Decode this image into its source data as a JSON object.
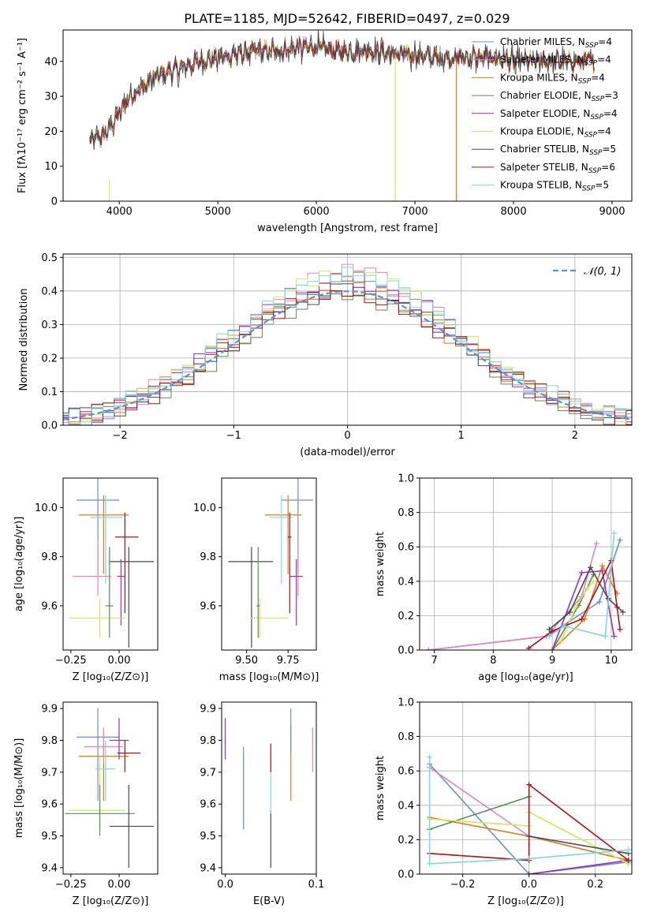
{
  "figure": {
    "title": "PLATE=1185, MJD=52642, FIBERID=0497, z=0.029"
  },
  "colors": {
    "Chabrier MILES": "#6a8fd8",
    "Salpeter MILES": "#e283c8",
    "Kroupa MILES": "#e07b1c",
    "Chabrier ELODIE": "#5a8a5a",
    "Salpeter ELODIE": "#9a2fb0",
    "Kroupa ELODIE": "#cfe85a",
    "Chabrier STELIB": "#4a4a4a",
    "Salpeter STELIB": "#b0101a",
    "Kroupa STELIB": "#7fd8e0",
    "normal": "#5b8fd8"
  },
  "chart_data": [
    {
      "id": "spectrum",
      "type": "line",
      "xlabel": "wavelength [Angstrom, rest frame]",
      "ylabel": "Flux [fλ10⁻¹⁷ erg cm⁻² s⁻¹ A⁻¹]",
      "xlim": [
        3430,
        9200
      ],
      "ylim": [
        0,
        49
      ],
      "xticks": [
        4000,
        5000,
        6000,
        7000,
        8000,
        9000
      ],
      "yticks": [
        0,
        10,
        20,
        30,
        40
      ],
      "grid": false,
      "legend_position": "upper right",
      "legend": [
        {
          "label": "Chabrier MILES, N",
          "sub": "SSP",
          "tail": "=4"
        },
        {
          "label": "Salpeter MILES, N",
          "sub": "SSP",
          "tail": "=4"
        },
        {
          "label": "Kroupa MILES, N",
          "sub": "SSP",
          "tail": "=4"
        },
        {
          "label": "Chabrier ELODIE, N",
          "sub": "SSP",
          "tail": "=3"
        },
        {
          "label": "Salpeter ELODIE, N",
          "sub": "SSP",
          "tail": "=4"
        },
        {
          "label": "Kroupa ELODIE, N",
          "sub": "SSP",
          "tail": "=4"
        },
        {
          "label": "Chabrier STELIB, N",
          "sub": "SSP",
          "tail": "=5"
        },
        {
          "label": "Salpeter STELIB, N",
          "sub": "SSP",
          "tail": "=6"
        },
        {
          "label": "Kroupa STELIB, N",
          "sub": "SSP",
          "tail": "=5"
        }
      ],
      "continuum": {
        "x": [
          3700,
          3850,
          4000,
          4100,
          4200,
          4400,
          4600,
          4800,
          5000,
          5200,
          5400,
          5600,
          5800,
          6000,
          6200,
          6400,
          6600,
          6800,
          7000,
          7200,
          7400,
          7600,
          7800,
          8000,
          8200,
          8400,
          8600,
          8800
        ],
        "y": [
          17,
          19,
          25,
          30,
          32,
          36,
          38,
          40,
          41,
          42,
          43,
          43,
          44,
          44,
          43,
          43,
          43,
          42,
          42,
          41,
          41,
          41,
          41,
          40,
          40,
          40,
          40,
          40
        ]
      },
      "end_x": 8820
    },
    {
      "id": "residuals",
      "type": "step-histogram",
      "xlabel": "(data-model)/error",
      "ylabel": "Normed distribution",
      "xlim": [
        -2.5,
        2.5
      ],
      "ylim": [
        0,
        0.51
      ],
      "xticks": [
        -2,
        -1,
        0,
        1,
        2
      ],
      "yticks": [
        0.0,
        0.1,
        0.2,
        0.3,
        0.4,
        0.5
      ],
      "grid": true,
      "legend_position": "upper right",
      "reference_label": "𝒩(0, 1)",
      "bin_width": 0.1
    },
    {
      "id": "age-vs-Z",
      "type": "errorbar",
      "xlabel": "Z [log₁₀(Z/Z⊙)]",
      "ylabel": "age  [log₁₀(age/yr)]",
      "xlim": [
        -0.29,
        0.2
      ],
      "ylim": [
        9.42,
        10.12
      ],
      "xticks": [
        -0.25,
        0.0
      ],
      "xtick_labels": [
        "−0.25",
        "0.00"
      ],
      "yticks": [
        9.6,
        9.8,
        10.0
      ],
      "points": [
        {
          "series": "Chabrier MILES",
          "x": -0.11,
          "y": 10.03,
          "xerr": [
            0.11,
            0.11
          ],
          "yerr": [
            0.3,
            0.3
          ]
        },
        {
          "series": "Kroupa MILES",
          "x": -0.08,
          "y": 9.97,
          "xerr": [
            0.13,
            0.13
          ],
          "yerr": [
            0.24,
            0.08
          ]
        },
        {
          "series": "Kroupa STELIB",
          "x": -0.07,
          "y": 9.96,
          "xerr": [
            0.08,
            0.09
          ],
          "yerr": [
            0.27,
            0.09
          ]
        },
        {
          "series": "Salpeter MILES",
          "x": -0.11,
          "y": 9.72,
          "xerr": [
            0.13,
            0.07
          ],
          "yerr": [
            0.08,
            0.15
          ]
        },
        {
          "series": "Chabrier STELIB",
          "x": 0.05,
          "y": 9.78,
          "xerr": [
            0.1,
            0.13
          ],
          "yerr": [
            0.35,
            0.06
          ]
        },
        {
          "series": "Salpeter STELIB",
          "x": 0.03,
          "y": 9.88,
          "xerr": [
            0.05,
            0.07
          ],
          "yerr": [
            0.31,
            0.1
          ]
        },
        {
          "series": "Salpeter ELODIE",
          "x": 0.01,
          "y": 9.72,
          "xerr": [
            0.02,
            0.02
          ],
          "yerr": [
            0.2,
            0.07
          ]
        },
        {
          "series": "Kroupa ELODIE",
          "x": -0.1,
          "y": 9.55,
          "xerr": [
            0.16,
            0.13
          ],
          "yerr": [
            0.08,
            0.08
          ]
        },
        {
          "series": "Chabrier ELODIE",
          "x": -0.05,
          "y": 9.6,
          "xerr": [
            0.02,
            0.02
          ],
          "yerr": [
            0.13,
            0.24
          ]
        }
      ]
    },
    {
      "id": "age-vs-mass",
      "type": "errorbar",
      "xlabel": "mass [log₁₀(M/M⊙)]",
      "ylabel": "",
      "xlim": [
        9.35,
        9.92
      ],
      "ylim": [
        9.42,
        10.12
      ],
      "xticks": [
        9.5,
        9.75
      ],
      "xtick_labels": [
        "9.50",
        "9.75"
      ],
      "yticks": [
        9.6,
        9.8,
        10.0
      ],
      "points": [
        {
          "series": "Chabrier MILES",
          "x": 9.81,
          "y": 10.03,
          "xerr": [
            0.1,
            0.09
          ],
          "yerr": [
            0.3,
            0.3
          ]
        },
        {
          "series": "Kroupa MILES",
          "x": 9.75,
          "y": 9.97,
          "xerr": [
            0.14,
            0.08
          ],
          "yerr": [
            0.24,
            0.08
          ]
        },
        {
          "series": "Kroupa STELIB",
          "x": 9.71,
          "y": 9.96,
          "xerr": [
            0.07,
            0.07
          ],
          "yerr": [
            0.27,
            0.09
          ]
        },
        {
          "series": "Salpeter MILES",
          "x": 9.81,
          "y": 9.72,
          "xerr": [
            0.04,
            0.03
          ],
          "yerr": [
            0.08,
            0.15
          ]
        },
        {
          "series": "Chabrier STELIB",
          "x": 9.53,
          "y": 9.78,
          "xerr": [
            0.14,
            0.13
          ],
          "yerr": [
            0.35,
            0.06
          ]
        },
        {
          "series": "Salpeter STELIB",
          "x": 9.76,
          "y": 9.88,
          "xerr": [
            0.01,
            0.01
          ],
          "yerr": [
            0.31,
            0.1
          ]
        },
        {
          "series": "Salpeter ELODIE",
          "x": 9.8,
          "y": 9.72,
          "xerr": [
            0.04,
            0.04
          ],
          "yerr": [
            0.2,
            0.07
          ]
        },
        {
          "series": "Kroupa ELODIE",
          "x": 9.58,
          "y": 9.55,
          "xerr": [
            0.06,
            0.17
          ],
          "yerr": [
            0.08,
            0.08
          ]
        },
        {
          "series": "Chabrier ELODIE",
          "x": 9.57,
          "y": 9.6,
          "xerr": [
            0.01,
            0.01
          ],
          "yerr": [
            0.13,
            0.24
          ]
        }
      ]
    },
    {
      "id": "massweight-vs-age",
      "type": "line",
      "xlabel": "age  [log₁₀(age/yr)]",
      "ylabel": "mass weight",
      "xlim": [
        6.75,
        10.35
      ],
      "ylim": [
        0,
        1.0
      ],
      "xticks": [
        7,
        8,
        9,
        10
      ],
      "yticks": [
        0.0,
        0.2,
        0.4,
        0.6,
        0.8,
        1.0
      ],
      "grid": true,
      "series": [
        {
          "name": "Chabrier MILES",
          "x": [
            6.9,
            8.9,
            9.8,
            10.15
          ],
          "y": [
            0.0,
            0.08,
            0.28,
            0.64
          ]
        },
        {
          "name": "Salpeter MILES",
          "x": [
            6.9,
            8.9,
            9.5,
            9.75
          ],
          "y": [
            0.0,
            0.08,
            0.31,
            0.62
          ]
        },
        {
          "name": "Kroupa MILES",
          "x": [
            9.0,
            9.55,
            9.85,
            10.1
          ],
          "y": [
            0.0,
            0.18,
            0.49,
            0.33
          ]
        },
        {
          "name": "Chabrier ELODIE",
          "x": [
            9.0,
            9.45,
            9.7
          ],
          "y": [
            0.0,
            0.26,
            0.44
          ]
        },
        {
          "name": "Salpeter ELODIE",
          "x": [
            9.0,
            9.5,
            9.85,
            10.05
          ],
          "y": [
            0.0,
            0.45,
            0.46,
            0.08
          ]
        },
        {
          "name": "Kroupa ELODIE",
          "x": [
            9.15,
            9.4,
            9.6,
            9.7
          ],
          "y": [
            0.05,
            0.25,
            0.36,
            0.4
          ]
        },
        {
          "name": "Chabrier STELIB",
          "x": [
            8.95,
            9.3,
            9.65,
            9.95,
            10.2
          ],
          "y": [
            0.12,
            0.22,
            0.48,
            0.3,
            0.22
          ]
        },
        {
          "name": "Salpeter STELIB",
          "x": [
            8.6,
            9.0,
            9.5,
            10.0,
            10.1,
            10.15
          ],
          "y": [
            0.01,
            0.11,
            0.18,
            0.52,
            0.25,
            0.12
          ]
        },
        {
          "name": "Kroupa STELIB",
          "x": [
            8.95,
            9.2,
            9.9,
            10.05
          ],
          "y": [
            0.08,
            0.14,
            0.08,
            0.68
          ]
        }
      ]
    },
    {
      "id": "mass-vs-Z",
      "type": "errorbar",
      "xlabel": "Z [log₁₀(Z/Z⊙)]",
      "ylabel": "mass [log₁₀(M/M⊙)]",
      "xlim": [
        -0.29,
        0.2
      ],
      "ylim": [
        9.38,
        9.92
      ],
      "xticks": [
        -0.25,
        0.0
      ],
      "xtick_labels": [
        "−0.25",
        "0.00"
      ],
      "yticks": [
        9.4,
        9.5,
        9.6,
        9.7,
        9.8,
        9.9
      ],
      "points": [
        {
          "series": "Chabrier MILES",
          "x": -0.11,
          "y": 9.81,
          "xerr": [
            0.11,
            0.11
          ],
          "yerr": [
            0.2,
            0.09
          ]
        },
        {
          "series": "Kroupa MILES",
          "x": -0.08,
          "y": 9.75,
          "xerr": [
            0.13,
            0.13
          ],
          "yerr": [
            0.14,
            0.08
          ]
        },
        {
          "series": "Salpeter MILES",
          "x": -0.08,
          "y": 9.78,
          "xerr": [
            0.1,
            0.1
          ],
          "yerr": [
            0.05,
            0.06
          ]
        },
        {
          "series": "Salpeter ELODIE",
          "x": 0.0,
          "y": 9.8,
          "xerr": [
            0.05,
            0.05
          ],
          "yerr": [
            0.06,
            0.07
          ]
        },
        {
          "series": "Salpeter STELIB",
          "x": 0.03,
          "y": 9.76,
          "xerr": [
            0.04,
            0.08
          ],
          "yerr": [
            0.06,
            0.04
          ]
        },
        {
          "series": "Kroupa STELIB",
          "x": -0.07,
          "y": 9.71,
          "xerr": [
            0.05,
            0.05
          ],
          "yerr": [
            0.1,
            0.09
          ]
        },
        {
          "series": "Kroupa ELODIE",
          "x": -0.1,
          "y": 9.58,
          "xerr": [
            0.16,
            0.13
          ],
          "yerr": [
            0.06,
            0.17
          ]
        },
        {
          "series": "Chabrier ELODIE",
          "x": -0.1,
          "y": 9.57,
          "xerr": [
            0.18,
            0.18
          ],
          "yerr": [
            0.07,
            0.09
          ]
        },
        {
          "series": "Chabrier STELIB",
          "x": 0.05,
          "y": 9.53,
          "xerr": [
            0.1,
            0.13
          ],
          "yerr": [
            0.13,
            0.13
          ]
        }
      ]
    },
    {
      "id": "mass-vs-EBV",
      "type": "errorbar",
      "xlabel": "E(B-V)",
      "ylabel": "",
      "xlim": [
        -0.004,
        0.1
      ],
      "ylim": [
        9.38,
        9.92
      ],
      "xticks": [
        0.0,
        0.1
      ],
      "xtick_labels": [
        "0.0",
        "0.1"
      ],
      "yticks": [
        9.4,
        9.5,
        9.6,
        9.7,
        9.8,
        9.9
      ],
      "points": [
        {
          "series": "Salpeter ELODIE",
          "x": 0.0,
          "y": 9.8,
          "xerr": [
            0,
            0
          ],
          "yerr": [
            0.06,
            0.07
          ]
        },
        {
          "series": "Kroupa ELODIE",
          "x": 0.02,
          "y": 9.62,
          "xerr": [
            0,
            0
          ],
          "yerr": [
            0.1,
            0.14
          ]
        },
        {
          "series": "Chabrier MILES",
          "x": 0.02,
          "y": 9.7,
          "xerr": [
            0,
            0
          ],
          "yerr": [
            0.18,
            0.08
          ]
        },
        {
          "series": "Chabrier STELIB",
          "x": 0.05,
          "y": 9.53,
          "xerr": [
            0,
            0
          ],
          "yerr": [
            0.13,
            0.05
          ]
        },
        {
          "series": "Kroupa STELIB",
          "x": 0.05,
          "y": 9.66,
          "xerr": [
            0,
            0
          ],
          "yerr": [
            0.09,
            0.09
          ]
        },
        {
          "series": "Salpeter STELIB",
          "x": 0.05,
          "y": 9.76,
          "xerr": [
            0,
            0
          ],
          "yerr": [
            0.06,
            0.03
          ]
        },
        {
          "series": "Kroupa MILES",
          "x": 0.072,
          "y": 9.73,
          "xerr": [
            0,
            0
          ],
          "yerr": [
            0.12,
            0.12
          ]
        },
        {
          "series": "Chabrier MILES",
          "x": 0.072,
          "y": 9.83,
          "xerr": [
            0,
            0
          ],
          "yerr": [
            0.07,
            0.07
          ]
        },
        {
          "series": "Salpeter MILES",
          "x": 0.096,
          "y": 9.77,
          "xerr": [
            0,
            0
          ],
          "yerr": [
            0.07,
            0.07
          ]
        }
      ]
    },
    {
      "id": "massweight-vs-Z",
      "type": "line",
      "xlabel": "Z [log₁₀(Z/Z⊙)]",
      "ylabel": "mass weight",
      "xlim": [
        -0.33,
        0.31
      ],
      "ylim": [
        0,
        1.0
      ],
      "xticks": [
        -0.2,
        0.0,
        0.2
      ],
      "xtick_labels": [
        "−0.2",
        "0.0",
        "0.2"
      ],
      "yticks": [
        0.0,
        0.2,
        0.4,
        0.6,
        0.8,
        1.0
      ],
      "grid": true,
      "series": [
        {
          "name": "Chabrier MILES",
          "x": [
            -0.3,
            0.0,
            0.3
          ],
          "y": [
            0.64,
            0.0,
            0.07
          ]
        },
        {
          "name": "Salpeter MILES",
          "x": [
            -0.3,
            0.0,
            0.3
          ],
          "y": [
            0.62,
            0.22,
            0.08
          ]
        },
        {
          "name": "Kroupa MILES",
          "x": [
            -0.3,
            0.0,
            0.3
          ],
          "y": [
            0.33,
            0.22,
            0.08
          ]
        },
        {
          "name": "Chabrier ELODIE",
          "x": [
            -0.3,
            0.0
          ],
          "y": [
            0.26,
            0.45
          ]
        },
        {
          "name": "Salpeter ELODIE",
          "x": [
            0.0,
            0.3
          ],
          "y": [
            0.0,
            0.08
          ]
        },
        {
          "name": "Kroupa ELODIE",
          "x": [
            -0.3,
            0.0,
            0.0,
            0.3
          ],
          "y": [
            0.32,
            0.28,
            0.36,
            0.06
          ]
        },
        {
          "name": "Chabrier STELIB",
          "x": [
            0.0,
            0.3
          ],
          "y": [
            0.22,
            0.12
          ]
        },
        {
          "name": "Salpeter STELIB",
          "x": [
            -0.3,
            0.0,
            0.0,
            0.3
          ],
          "y": [
            0.12,
            0.08,
            0.52,
            0.08
          ]
        },
        {
          "name": "Kroupa STELIB",
          "x": [
            -0.3,
            -0.3,
            0.0,
            0.3
          ],
          "y": [
            0.68,
            0.06,
            0.09,
            0.14
          ]
        }
      ]
    }
  ]
}
